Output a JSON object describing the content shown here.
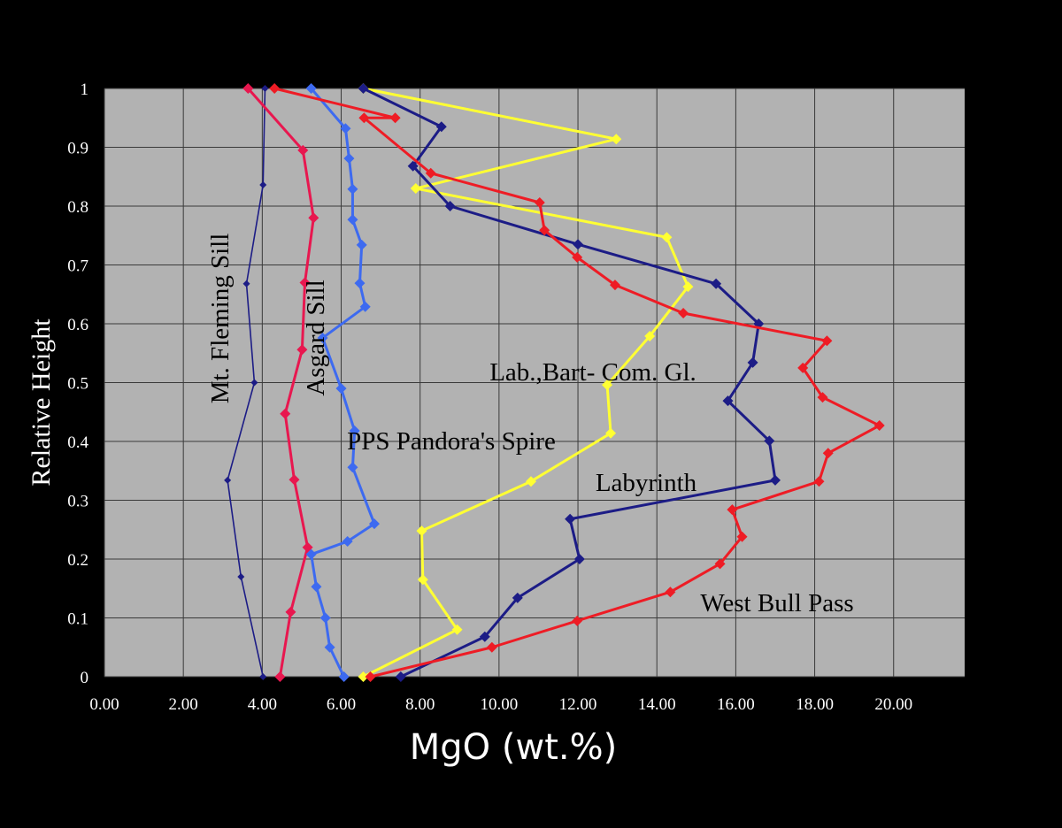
{
  "chart_data": {
    "type": "line",
    "xlabel": "MgO (wt.%)",
    "ylabel": "Relative Height",
    "xlim": [
      0,
      21.8
    ],
    "ylim": [
      0,
      1
    ],
    "xticks": [
      {
        "value": 0,
        "label": "0.00"
      },
      {
        "value": 2,
        "label": "2.00"
      },
      {
        "value": 4,
        "label": "4.00"
      },
      {
        "value": 6,
        "label": "6.00"
      },
      {
        "value": 8,
        "label": "8.00"
      },
      {
        "value": 10,
        "label": "10.00"
      },
      {
        "value": 12,
        "label": "12.00"
      },
      {
        "value": 14,
        "label": "14.00"
      },
      {
        "value": 16,
        "label": "16.00"
      },
      {
        "value": 18,
        "label": "18.00"
      },
      {
        "value": 20,
        "label": "20.00"
      }
    ],
    "yticks": [
      0,
      0.1,
      0.2,
      0.3,
      0.4,
      0.5,
      0.6,
      0.7,
      0.8,
      0.9,
      1
    ],
    "grid": true,
    "series": [
      {
        "name": "Mt. Fleming Sill",
        "color": "#1c1c86",
        "x": [
          4.02,
          3.46,
          3.12,
          3.8,
          3.6,
          4.02,
          4.07
        ],
        "values": [
          0,
          0.17,
          0.334,
          0.5,
          0.668,
          0.836,
          1
        ]
      },
      {
        "name": "Asgard Sill",
        "color": "#e8174f",
        "x": [
          4.45,
          4.72,
          5.15,
          4.81,
          4.58,
          5.01,
          5.08,
          5.3,
          5.03,
          3.64
        ],
        "values": [
          0,
          0.11,
          0.22,
          0.335,
          0.447,
          0.556,
          0.67,
          0.78,
          0.895,
          1
        ]
      },
      {
        "name": "PPS Pandora's Spire",
        "color": "#3d6af0",
        "x": [
          6.07,
          5.71,
          5.6,
          5.37,
          5.24,
          6.16,
          6.84,
          6.29,
          6.34,
          6.0,
          5.53,
          6.61,
          6.47,
          6.52,
          6.29,
          6.29,
          6.2,
          6.11,
          5.24
        ],
        "values": [
          0,
          0.05,
          0.1,
          0.153,
          0.208,
          0.23,
          0.26,
          0.356,
          0.418,
          0.49,
          0.576,
          0.629,
          0.669,
          0.734,
          0.777,
          0.829,
          0.881,
          0.932,
          1
        ]
      },
      {
        "name": "Lab.,Bart- Com. Gl.",
        "color": "#ffff33",
        "x": [
          6.56,
          8.94,
          8.07,
          8.04,
          10.81,
          12.83,
          12.74,
          13.82,
          14.79,
          14.25,
          7.89,
          12.97,
          6.56
        ],
        "values": [
          0,
          0.08,
          0.165,
          0.248,
          0.332,
          0.414,
          0.496,
          0.579,
          0.663,
          0.747,
          0.83,
          0.914,
          1
        ]
      },
      {
        "name": "Labyrinth",
        "color": "#1c1c86",
        "x": [
          7.51,
          9.64,
          10.47,
          12.04,
          11.8,
          17.0,
          16.85,
          15.8,
          16.43,
          16.58,
          15.5,
          12.0,
          8.76,
          7.82,
          8.54,
          6.56
        ],
        "values": [
          0,
          0.068,
          0.134,
          0.2,
          0.268,
          0.334,
          0.401,
          0.469,
          0.534,
          0.6,
          0.668,
          0.735,
          0.8,
          0.868,
          0.935,
          1
        ]
      },
      {
        "name": "West Bull Pass",
        "color": "#ee1c25",
        "x": [
          6.74,
          9.82,
          11.98,
          14.34,
          15.6,
          16.16,
          15.91,
          18.11,
          18.34,
          19.64,
          18.2,
          17.7,
          18.31,
          14.67,
          12.94,
          11.98,
          11.15,
          11.03,
          8.27,
          6.58,
          7.37,
          4.31
        ],
        "values": [
          0,
          0.05,
          0.095,
          0.144,
          0.192,
          0.238,
          0.284,
          0.332,
          0.38,
          0.427,
          0.475,
          0.525,
          0.571,
          0.618,
          0.666,
          0.713,
          0.759,
          0.806,
          0.856,
          0.95,
          0.95,
          1
        ]
      }
    ]
  }
}
